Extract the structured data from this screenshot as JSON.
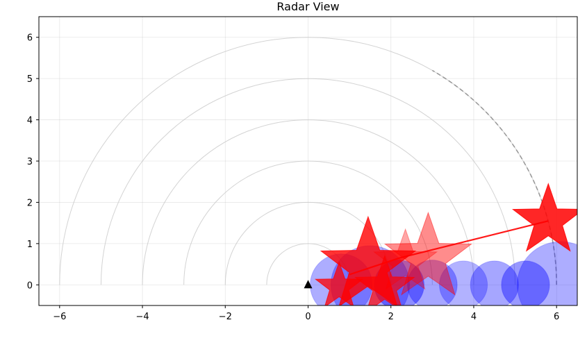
{
  "chart_data": {
    "type": "scatter",
    "title": "Radar View",
    "xlabel": "",
    "ylabel": "",
    "xlim": [
      -6.5,
      6.5
    ],
    "ylim": [
      -0.5,
      6.5
    ],
    "grid": true,
    "x_ticks": [
      -6,
      -4,
      -2,
      0,
      2,
      4,
      6
    ],
    "y_ticks": [
      0,
      1,
      2,
      3,
      4,
      5,
      6
    ],
    "range_rings": [
      1,
      2,
      3,
      4,
      5,
      6
    ],
    "max_range_arc": {
      "radius": 6,
      "from_deg": 0,
      "to_deg": 60
    },
    "origin": {
      "x": 0,
      "y": 0,
      "marker": "triangle"
    },
    "blue_circles": [
      {
        "x": 0.8,
        "y": 0,
        "size": 0.75,
        "opacity": 0.32
      },
      {
        "x": 1.5,
        "y": 0,
        "size": 0.95,
        "opacity": 0.32
      },
      {
        "x": 2.2,
        "y": 0,
        "size": 0.6,
        "opacity": 0.45
      },
      {
        "x": 3.0,
        "y": 0,
        "size": 0.6,
        "opacity": 0.35
      },
      {
        "x": 3.75,
        "y": 0,
        "size": 0.58,
        "opacity": 0.3
      },
      {
        "x": 4.5,
        "y": 0,
        "size": 0.58,
        "opacity": 0.35
      },
      {
        "x": 5.25,
        "y": 0,
        "size": 0.58,
        "opacity": 0.4
      },
      {
        "x": 6.1,
        "y": 0,
        "size": 1.05,
        "opacity": 0.32
      }
    ],
    "red_stars": [
      {
        "x": 0.75,
        "y": -0.05,
        "size": 0.6,
        "opacity": 0.75
      },
      {
        "x": 1.45,
        "y": 0.45,
        "size": 1.2,
        "opacity": 0.8
      },
      {
        "x": 1.85,
        "y": -0.05,
        "size": 0.75,
        "opacity": 0.7
      },
      {
        "x": 2.35,
        "y": 0.55,
        "size": 0.8,
        "opacity": 0.35
      },
      {
        "x": 2.9,
        "y": 0.65,
        "size": 1.1,
        "opacity": 0.45
      },
      {
        "x": 5.8,
        "y": 1.55,
        "size": 0.9,
        "opacity": 0.85
      }
    ],
    "colors": {
      "circle": "#0000ff",
      "star": "#ff0000",
      "overlap": "#800080",
      "track": "#ff0000"
    },
    "track_line": [
      [
        1.0,
        0.25
      ],
      [
        2.2,
        0.65
      ],
      [
        5.8,
        1.55
      ]
    ]
  }
}
